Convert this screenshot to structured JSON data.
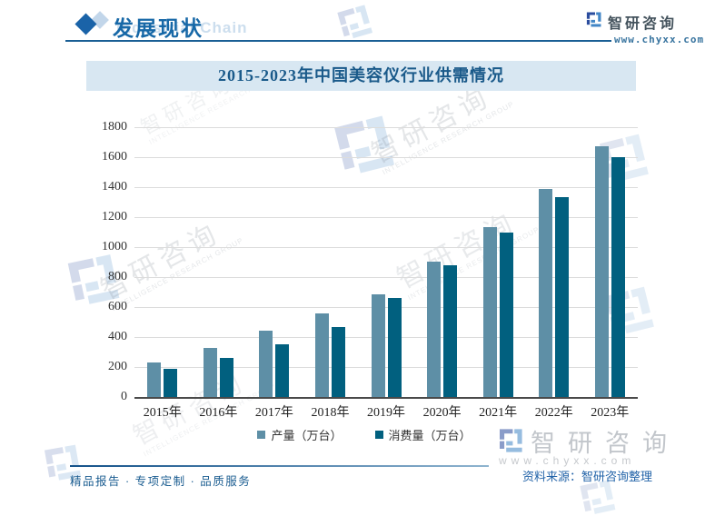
{
  "header": {
    "section_title": "发展现状",
    "section_subtitle_en": "Industrial Chain",
    "brand": "智研咨询",
    "site": "www.chyxx.com"
  },
  "chart_data": {
    "type": "bar",
    "title": "2015-2023年中国美容仪行业供需情况",
    "categories": [
      "2015年",
      "2016年",
      "2017年",
      "2018年",
      "2019年",
      "2020年",
      "2021年",
      "2022年",
      "2023年"
    ],
    "series": [
      {
        "name": "产量（万台）",
        "color": "#5E8FA6",
        "values": [
          233,
          328,
          445,
          560,
          687,
          902,
          1133,
          1387,
          1670
        ]
      },
      {
        "name": "消费量（万台）",
        "color": "#01607F",
        "values": [
          190,
          262,
          354,
          468,
          658,
          880,
          1095,
          1335,
          1602
        ]
      }
    ],
    "xlabel": "",
    "ylabel": "",
    "ylim": [
      0,
      1800
    ],
    "ytick_step": 200,
    "yticks": [
      0,
      200,
      400,
      600,
      800,
      1000,
      1200,
      1400,
      1600,
      1800
    ],
    "grid": true,
    "legend_position": "bottom"
  },
  "footer": {
    "left": "精品报告 · 专项定制 · 品质服务",
    "source": "资料来源：智研咨询整理"
  },
  "watermark": {
    "brand_cn": "智研咨询",
    "brand_en": "INTELLIGENCE RESEARCH GROUP",
    "site": "www.chyxx.com"
  },
  "colors": {
    "accent_blue": "#1a63a8",
    "title_band_bg": "#d8e7f2",
    "title_text": "#1a5a8a",
    "series_production": "#5E8FA6",
    "series_consumption": "#01607F",
    "gridline": "#dcdcdc",
    "axis_line": "#4a4a4a"
  },
  "icons": {
    "logo_icon": "zhiyan-logo-mark",
    "header_icon": "double-diamond"
  }
}
